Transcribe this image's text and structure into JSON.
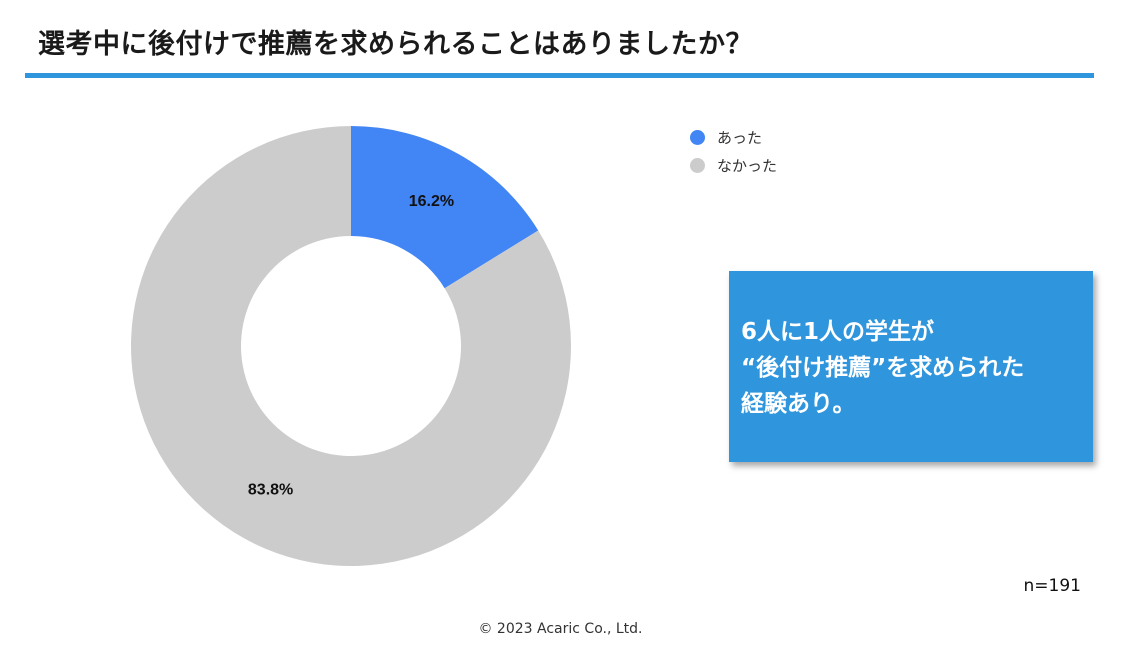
{
  "title": "選考中に後付けで推薦を求められることはありましたか？",
  "accent_color": "#2f95dc",
  "chart_data": {
    "type": "pie",
    "donut": true,
    "categories": [
      "あった",
      "なかった"
    ],
    "values": [
      16.2,
      83.8
    ],
    "value_labels": [
      "16.2%",
      "83.8%"
    ],
    "colors": [
      "#4285f4",
      "#cccccc"
    ],
    "legend": "top-right"
  },
  "callout": {
    "lines": [
      "6人に1人の学生が",
      "“後付け推薦”を求められた",
      "経験あり。"
    ]
  },
  "sample_size": "n=191",
  "footer": "© 2023 Acaric Co., Ltd."
}
